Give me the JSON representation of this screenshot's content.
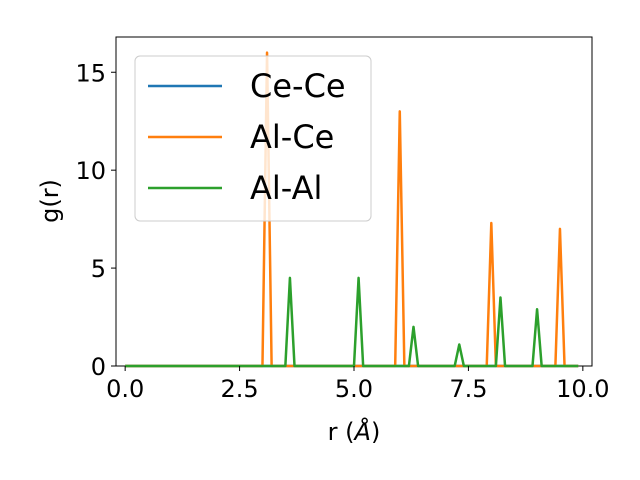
{
  "chart_data": {
    "type": "line",
    "xlabel_main": "r (",
    "xlabel_unit": "Å",
    "xlabel_close": ")",
    "ylabel": "g(r)",
    "xlim": [
      -0.2,
      10.2
    ],
    "ylim": [
      0,
      16.8
    ],
    "xticks": [
      0.0,
      2.5,
      5.0,
      7.5,
      10.0
    ],
    "xtick_labels": [
      "0.0",
      "2.5",
      "5.0",
      "7.5",
      "10.0"
    ],
    "yticks": [
      0,
      5,
      10,
      15
    ],
    "ytick_labels": [
      "0",
      "5",
      "10",
      "15"
    ],
    "grid": false,
    "legend_position": "top-left",
    "series": [
      {
        "name": "Ce-Ce",
        "color": "#1f77b4",
        "x": [
          0.0,
          9.9
        ],
        "y": [
          0,
          0
        ]
      },
      {
        "name": "Al-Ce",
        "color": "#ff7f0e",
        "x": [
          0.0,
          3.0,
          3.1,
          3.2,
          5.9,
          6.0,
          6.1,
          7.9,
          8.0,
          8.1,
          9.4,
          9.5,
          9.6,
          9.9
        ],
        "y": [
          0,
          0,
          16.0,
          0,
          0,
          13.0,
          0,
          0,
          7.3,
          0,
          0,
          7.0,
          0,
          0
        ]
      },
      {
        "name": "Al-Al",
        "color": "#2ca02c",
        "x": [
          0.0,
          3.5,
          3.6,
          3.7,
          5.0,
          5.1,
          5.2,
          6.2,
          6.3,
          6.4,
          7.2,
          7.3,
          7.4,
          8.1,
          8.2,
          8.3,
          8.9,
          9.0,
          9.1,
          9.9
        ],
        "y": [
          0,
          0,
          4.5,
          0,
          0,
          4.5,
          0,
          0,
          2.0,
          0,
          0,
          1.1,
          0,
          0,
          3.5,
          0,
          0,
          2.9,
          0,
          0
        ]
      }
    ]
  }
}
